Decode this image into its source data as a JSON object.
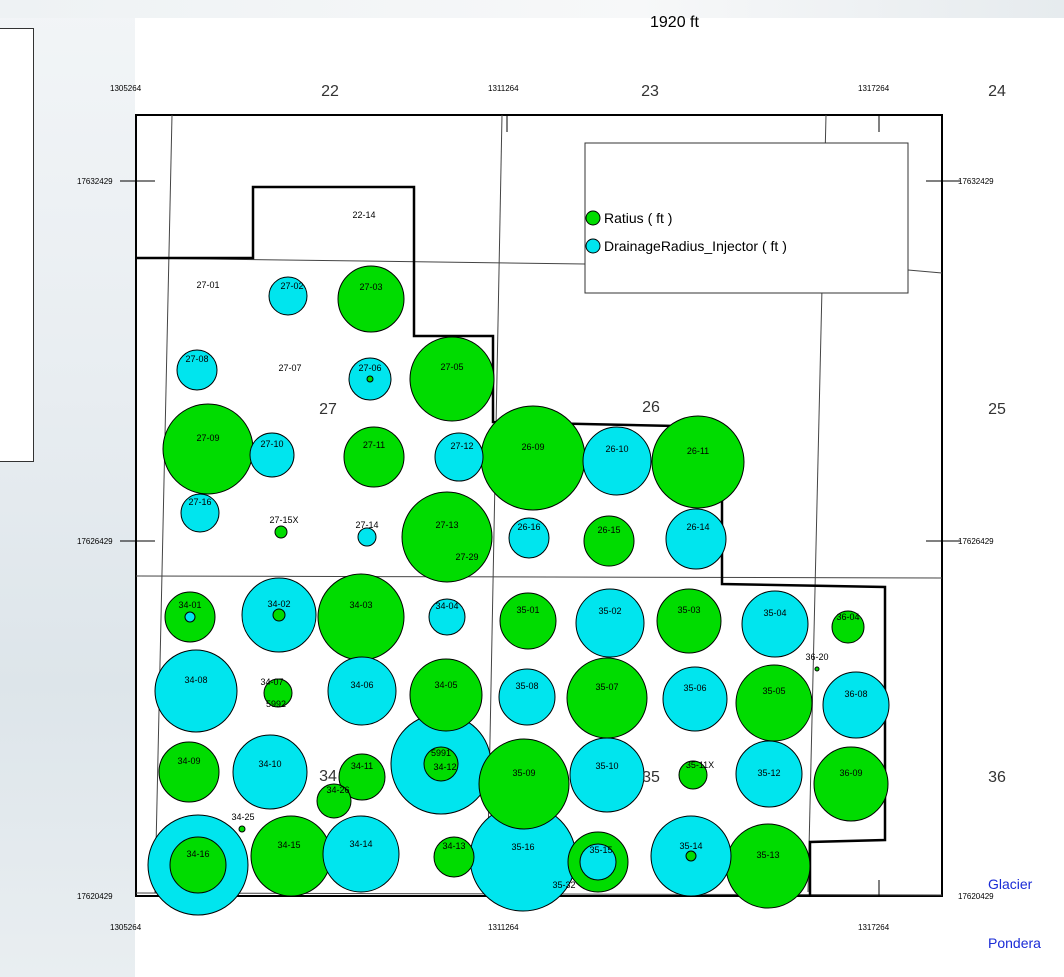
{
  "scale_label": "1920  ft",
  "legend": {
    "items": [
      {
        "label": "Ratius ( ft )",
        "color": "#00dc00"
      },
      {
        "label": "DrainageRadius_Injector ( ft )",
        "color": "#00e5ee"
      }
    ]
  },
  "colors": {
    "producer": "#00dc00",
    "injector": "#00e5ee",
    "label_blue": "#1a2bd6"
  },
  "coordinates": {
    "x_top": [
      "1305264",
      "1311264",
      "1317264"
    ],
    "x_bottom": [
      "1305264",
      "1311264",
      "1317264"
    ],
    "y_left": [
      "17632429",
      "17626429",
      "17620429"
    ],
    "y_right": [
      "17632429",
      "17626429",
      "17620429"
    ]
  },
  "sections": [
    {
      "label": "22",
      "pos": [
        330,
        90
      ]
    },
    {
      "label": "23",
      "pos": [
        650,
        90
      ]
    },
    {
      "label": "24",
      "pos": [
        997,
        90
      ]
    },
    {
      "label": "27",
      "pos": [
        328,
        408
      ]
    },
    {
      "label": "26",
      "pos": [
        651,
        406
      ]
    },
    {
      "label": "25",
      "pos": [
        997,
        408
      ]
    },
    {
      "label": "34",
      "pos": [
        328,
        775
      ]
    },
    {
      "label": "35",
      "pos": [
        651,
        776
      ]
    },
    {
      "label": "36",
      "pos": [
        997,
        776
      ]
    }
  ],
  "wells": [
    {
      "id": "22-14",
      "type": "label",
      "label_pos": [
        364,
        214
      ]
    },
    {
      "id": "27-01",
      "type": "label",
      "label_pos": [
        208,
        284
      ]
    },
    {
      "id": "27-02",
      "type": "injector",
      "center": [
        288,
        296
      ],
      "r": 19,
      "label_pos": [
        292,
        285
      ]
    },
    {
      "id": "27-03",
      "type": "producer",
      "center": [
        371,
        299
      ],
      "r": 33,
      "label_pos": [
        371,
        286
      ]
    },
    {
      "id": "27-08",
      "type": "injector",
      "center": [
        197,
        370
      ],
      "r": 20,
      "label_pos": [
        197,
        358
      ]
    },
    {
      "id": "27-07",
      "type": "label",
      "label_pos": [
        290,
        367
      ]
    },
    {
      "id": "27-06",
      "type": "injector",
      "center": [
        370,
        379
      ],
      "r": 21,
      "inner_r": 3,
      "label_pos": [
        370,
        367
      ]
    },
    {
      "id": "27-05",
      "type": "producer",
      "center": [
        452,
        379
      ],
      "r": 42,
      "label_pos": [
        452,
        366
      ]
    },
    {
      "id": "27-09",
      "type": "producer",
      "center": [
        208,
        449
      ],
      "r": 45,
      "label_pos": [
        208,
        437
      ]
    },
    {
      "id": "27-10",
      "type": "injector",
      "center": [
        272,
        455
      ],
      "r": 22,
      "label_pos": [
        272,
        443
      ]
    },
    {
      "id": "27-11",
      "type": "producer",
      "center": [
        374,
        457
      ],
      "r": 30,
      "label_pos": [
        374,
        444
      ]
    },
    {
      "id": "27-12",
      "type": "injector",
      "center": [
        459,
        457
      ],
      "r": 24,
      "label_pos": [
        462,
        445
      ]
    },
    {
      "id": "26-09",
      "type": "producer",
      "center": [
        533,
        458
      ],
      "r": 52,
      "label_pos": [
        533,
        446
      ]
    },
    {
      "id": "26-10",
      "type": "injector",
      "center": [
        617,
        461
      ],
      "r": 34,
      "label_pos": [
        617,
        448
      ]
    },
    {
      "id": "26-11",
      "type": "producer",
      "center": [
        698,
        462
      ],
      "r": 46,
      "label_pos": [
        698,
        450
      ]
    },
    {
      "id": "27-16",
      "type": "injector",
      "center": [
        200,
        513
      ],
      "r": 19,
      "label_pos": [
        200,
        501
      ]
    },
    {
      "id": "27-15X",
      "type": "producer",
      "center": [
        281,
        532
      ],
      "r": 6,
      "label_pos": [
        284,
        519
      ]
    },
    {
      "id": "27-14",
      "type": "injector",
      "center": [
        367,
        537
      ],
      "r": 9,
      "label_pos": [
        367,
        524
      ]
    },
    {
      "id": "27-13",
      "type": "producer",
      "center": [
        447,
        537
      ],
      "r": 45,
      "label_pos": [
        447,
        524
      ]
    },
    {
      "id": "27-29",
      "type": "label",
      "label_pos": [
        467,
        556
      ]
    },
    {
      "id": "26-16",
      "type": "injector",
      "center": [
        529,
        538
      ],
      "r": 20,
      "label_pos": [
        529,
        526
      ]
    },
    {
      "id": "26-15",
      "type": "producer",
      "center": [
        609,
        541
      ],
      "r": 25,
      "label_pos": [
        609,
        529
      ]
    },
    {
      "id": "26-14",
      "type": "injector",
      "center": [
        696,
        539
      ],
      "r": 30,
      "label_pos": [
        698,
        526
      ]
    },
    {
      "id": "34-01",
      "type": "producer",
      "center": [
        190,
        617
      ],
      "r": 25,
      "inner_r": 5,
      "label_pos": [
        190,
        604
      ]
    },
    {
      "id": "34-02",
      "type": "injector",
      "center": [
        279,
        615
      ],
      "r": 37,
      "inner_r": 6,
      "label_pos": [
        279,
        603
      ]
    },
    {
      "id": "34-03",
      "type": "producer",
      "center": [
        361,
        617
      ],
      "r": 43,
      "label_pos": [
        361,
        604
      ]
    },
    {
      "id": "34-04",
      "type": "injector",
      "center": [
        447,
        617
      ],
      "r": 18,
      "label_pos": [
        447,
        605
      ]
    },
    {
      "id": "35-01",
      "type": "producer",
      "center": [
        528,
        621
      ],
      "r": 28,
      "label_pos": [
        528,
        609
      ]
    },
    {
      "id": "35-02",
      "type": "injector",
      "center": [
        610,
        623
      ],
      "r": 34,
      "label_pos": [
        610,
        610
      ]
    },
    {
      "id": "35-03",
      "type": "producer",
      "center": [
        689,
        621
      ],
      "r": 32,
      "label_pos": [
        689,
        609
      ]
    },
    {
      "id": "35-04",
      "type": "injector",
      "center": [
        775,
        624
      ],
      "r": 33,
      "label_pos": [
        775,
        612
      ]
    },
    {
      "id": "36-04",
      "type": "producer",
      "center": [
        848,
        627
      ],
      "r": 16,
      "label_pos": [
        848,
        616
      ]
    },
    {
      "id": "36-20",
      "type": "producer",
      "center": [
        817,
        669
      ],
      "r": 2,
      "label_pos": [
        817,
        656
      ]
    },
    {
      "id": "34-08",
      "type": "injector",
      "center": [
        196,
        691
      ],
      "r": 41,
      "label_pos": [
        196,
        679
      ]
    },
    {
      "id": "34-07",
      "type": "producer",
      "center": [
        278,
        693
      ],
      "r": 14,
      "label_pos": [
        272,
        681
      ]
    },
    {
      "id": "5992",
      "type": "label",
      "label_pos": [
        276,
        703
      ]
    },
    {
      "id": "34-06",
      "type": "injector",
      "center": [
        362,
        691
      ],
      "r": 34,
      "label_pos": [
        362,
        684
      ]
    },
    {
      "id": "34-05",
      "type": "producer",
      "center": [
        446,
        695
      ],
      "r": 36,
      "label_pos": [
        446,
        684
      ]
    },
    {
      "id": "35-08",
      "type": "injector",
      "center": [
        527,
        697
      ],
      "r": 28,
      "label_pos": [
        527,
        685
      ]
    },
    {
      "id": "35-07",
      "type": "producer",
      "center": [
        607,
        698
      ],
      "r": 40,
      "label_pos": [
        607,
        686
      ]
    },
    {
      "id": "35-06",
      "type": "injector",
      "center": [
        695,
        699
      ],
      "r": 32,
      "label_pos": [
        695,
        687
      ]
    },
    {
      "id": "35-05",
      "type": "producer",
      "center": [
        774,
        703
      ],
      "r": 38,
      "label_pos": [
        774,
        690
      ]
    },
    {
      "id": "36-08",
      "type": "injector",
      "center": [
        856,
        705
      ],
      "r": 33,
      "label_pos": [
        856,
        693
      ]
    },
    {
      "id": "34-09",
      "type": "producer",
      "center": [
        189,
        772
      ],
      "r": 30,
      "label_pos": [
        189,
        760
      ]
    },
    {
      "id": "34-10",
      "type": "injector",
      "center": [
        270,
        772
      ],
      "r": 37,
      "label_pos": [
        270,
        763
      ]
    },
    {
      "id": "34-11",
      "type": "producer",
      "center": [
        362,
        777
      ],
      "r": 23,
      "label_pos": [
        362,
        765
      ]
    },
    {
      "id": "34-26",
      "type": "producer",
      "center": [
        334,
        801
      ],
      "r": 17,
      "label_pos": [
        338,
        789
      ]
    },
    {
      "id": "5991",
      "type": "injector",
      "center": [
        441,
        764
      ],
      "r": 50,
      "inner_r": 17,
      "label_pos": [
        441,
        752
      ]
    },
    {
      "id": "34-12",
      "type": "label",
      "label_pos": [
        445,
        766
      ]
    },
    {
      "id": "35-09",
      "type": "producer",
      "center": [
        524,
        784
      ],
      "r": 45,
      "label_pos": [
        524,
        772
      ]
    },
    {
      "id": "35-10",
      "type": "injector",
      "center": [
        607,
        775
      ],
      "r": 37,
      "label_pos": [
        607,
        765
      ]
    },
    {
      "id": "35-11X",
      "type": "producer",
      "center": [
        693,
        775
      ],
      "r": 14,
      "label_pos": [
        700,
        764
      ]
    },
    {
      "id": "35-12",
      "type": "injector",
      "center": [
        769,
        774
      ],
      "r": 33,
      "label_pos": [
        769,
        772
      ]
    },
    {
      "id": "36-09",
      "type": "producer",
      "center": [
        851,
        784
      ],
      "r": 37,
      "label_pos": [
        851,
        772
      ]
    },
    {
      "id": "34-25",
      "type": "producer",
      "center": [
        242,
        829
      ],
      "r": 3,
      "label_pos": [
        243,
        816
      ]
    },
    {
      "id": "34-16",
      "type": "injector",
      "center": [
        198,
        865
      ],
      "r": 50,
      "inner_r": 28,
      "label_pos": [
        198,
        853
      ]
    },
    {
      "id": "34-15",
      "type": "producer",
      "center": [
        291,
        856
      ],
      "r": 40,
      "label_pos": [
        289,
        844
      ]
    },
    {
      "id": "34-14",
      "type": "injector",
      "center": [
        361,
        854
      ],
      "r": 38,
      "label_pos": [
        361,
        843
      ]
    },
    {
      "id": "34-13",
      "type": "producer",
      "center": [
        454,
        857
      ],
      "r": 20,
      "label_pos": [
        454,
        845
      ]
    },
    {
      "id": "35-16",
      "type": "injector",
      "center": [
        523,
        858
      ],
      "r": 53,
      "label_pos": [
        523,
        846
      ]
    },
    {
      "id": "35-15",
      "type": "producer",
      "center": [
        598,
        862
      ],
      "r": 30,
      "inner_r": 18,
      "label_pos": [
        601,
        849
      ]
    },
    {
      "id": "35-32",
      "type": "label",
      "label_pos": [
        564,
        884
      ]
    },
    {
      "id": "35-14",
      "type": "injector",
      "center": [
        691,
        856
      ],
      "r": 40,
      "inner_r": 5,
      "label_pos": [
        691,
        845
      ]
    },
    {
      "id": "35-13",
      "type": "producer",
      "center": [
        768,
        866
      ],
      "r": 42,
      "label_pos": [
        768,
        854
      ]
    }
  ],
  "place_names": [
    "Glacier",
    "Pondera"
  ]
}
